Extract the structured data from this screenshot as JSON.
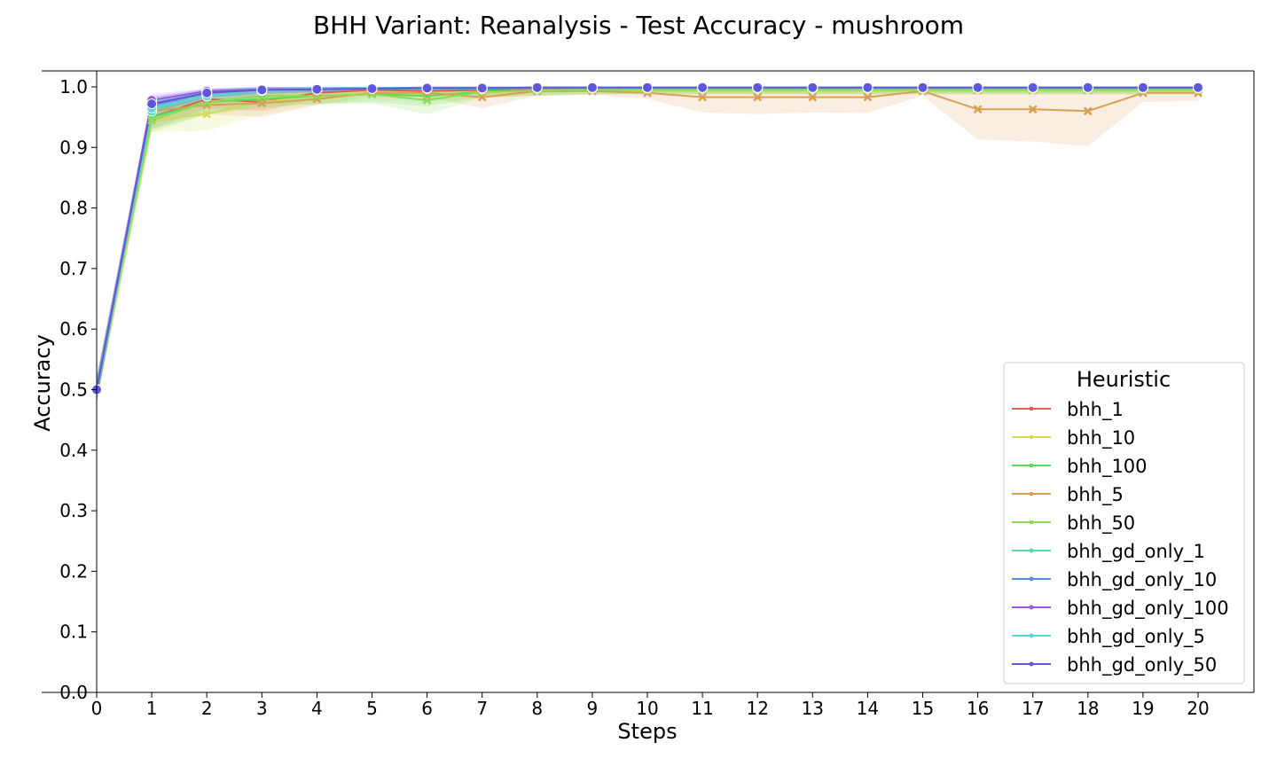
{
  "chart_data": {
    "type": "line",
    "title": "BHH Variant: Reanalysis - Test Accuracy - mushroom",
    "xlabel": "Steps",
    "ylabel": "Accuracy",
    "xlim": [
      0,
      21
    ],
    "ylim": [
      0.0,
      1.0
    ],
    "x": [
      0,
      1,
      2,
      3,
      4,
      5,
      6,
      7,
      8,
      9,
      10,
      11,
      12,
      13,
      14,
      15,
      16,
      17,
      18,
      19,
      20
    ],
    "xticks": [
      "0",
      "1",
      "2",
      "3",
      "4",
      "5",
      "6",
      "7",
      "8",
      "9",
      "10",
      "11",
      "12",
      "13",
      "14",
      "15",
      "16",
      "17",
      "18",
      "19",
      "20"
    ],
    "yticks": [
      "0.0",
      "0.1",
      "0.2",
      "0.3",
      "0.4",
      "0.5",
      "0.6",
      "0.7",
      "0.8",
      "0.9",
      "1.0"
    ],
    "grid": false,
    "legend": {
      "title": "Heuristic",
      "position": "lower-right"
    },
    "series": [
      {
        "name": "bhh_1",
        "color": "#db5f57",
        "marker": "x",
        "values": [
          0.5,
          0.95,
          0.98,
          0.975,
          0.99,
          0.995,
          0.993,
          0.995,
          0.996,
          0.997,
          0.997,
          0.997,
          0.997,
          0.997,
          0.997,
          0.997,
          0.997,
          0.997,
          0.997,
          0.997,
          0.997
        ],
        "lower": [
          0.49,
          0.93,
          0.965,
          0.96,
          0.98,
          0.988,
          0.985,
          0.988,
          0.99,
          0.992,
          0.992,
          0.992,
          0.992,
          0.992,
          0.992,
          0.992,
          0.992,
          0.992,
          0.992,
          0.992,
          0.992
        ],
        "upper": [
          0.51,
          0.968,
          0.992,
          0.988,
          0.997,
          0.999,
          0.999,
          0.999,
          1.0,
          1.0,
          1.0,
          1.0,
          1.0,
          1.0,
          1.0,
          1.0,
          1.0,
          1.0,
          1.0,
          1.0,
          1.0
        ]
      },
      {
        "name": "bhh_10",
        "color": "#d3db57",
        "marker": "x",
        "values": [
          0.5,
          0.945,
          0.955,
          0.975,
          0.985,
          0.99,
          0.988,
          0.99,
          0.993,
          0.994,
          0.994,
          0.994,
          0.994,
          0.994,
          0.994,
          0.994,
          0.994,
          0.994,
          0.994,
          0.994,
          0.994
        ],
        "lower": [
          0.48,
          0.925,
          0.928,
          0.955,
          0.97,
          0.98,
          0.975,
          0.982,
          0.985,
          0.988,
          0.988,
          0.988,
          0.988,
          0.988,
          0.988,
          0.988,
          0.988,
          0.988,
          0.988,
          0.988,
          0.988
        ],
        "upper": [
          0.52,
          0.965,
          0.98,
          0.99,
          0.996,
          0.998,
          0.997,
          0.998,
          0.999,
          0.999,
          0.999,
          0.999,
          0.999,
          0.999,
          0.999,
          0.999,
          0.999,
          0.999,
          0.999,
          0.999,
          0.999
        ]
      },
      {
        "name": "bhh_100",
        "color": "#57db5f",
        "marker": "x",
        "values": [
          0.5,
          0.95,
          0.975,
          0.98,
          0.985,
          0.988,
          0.985,
          0.992,
          0.994,
          0.995,
          0.995,
          0.995,
          0.995,
          0.995,
          0.995,
          0.995,
          0.995,
          0.995,
          0.995,
          0.995,
          0.995
        ],
        "lower": [
          0.48,
          0.93,
          0.955,
          0.965,
          0.972,
          0.975,
          0.968,
          0.982,
          0.986,
          0.988,
          0.988,
          0.988,
          0.988,
          0.988,
          0.988,
          0.988,
          0.988,
          0.988,
          0.988,
          0.988,
          0.988
        ],
        "upper": [
          0.52,
          0.968,
          0.99,
          0.992,
          0.995,
          0.997,
          0.996,
          0.998,
          0.999,
          0.999,
          0.999,
          0.999,
          0.999,
          0.999,
          0.999,
          0.999,
          0.999,
          0.999,
          0.999,
          0.999,
          0.999
        ]
      },
      {
        "name": "bhh_5",
        "color": "#db9e57",
        "marker": "x",
        "values": [
          0.5,
          0.96,
          0.97,
          0.973,
          0.98,
          0.99,
          0.99,
          0.983,
          0.993,
          0.993,
          0.99,
          0.983,
          0.983,
          0.983,
          0.983,
          0.993,
          0.963,
          0.963,
          0.96,
          0.99,
          0.99
        ],
        "lower": [
          0.48,
          0.94,
          0.955,
          0.95,
          0.97,
          0.985,
          0.983,
          0.965,
          0.985,
          0.987,
          0.98,
          0.958,
          0.955,
          0.958,
          0.957,
          0.985,
          0.913,
          0.91,
          0.902,
          0.975,
          0.977
        ],
        "upper": [
          0.52,
          0.975,
          0.985,
          0.99,
          0.993,
          0.997,
          0.997,
          0.997,
          0.999,
          0.999,
          0.998,
          0.997,
          0.997,
          0.997,
          0.997,
          0.999,
          0.997,
          0.997,
          0.997,
          0.999,
          0.999
        ]
      },
      {
        "name": "bhh_50",
        "color": "#8edb57",
        "marker": "x",
        "values": [
          0.5,
          0.945,
          0.975,
          0.985,
          0.985,
          0.988,
          0.978,
          0.992,
          0.994,
          0.995,
          0.995,
          0.995,
          0.995,
          0.995,
          0.995,
          0.995,
          0.995,
          0.995,
          0.995,
          0.995,
          0.995
        ],
        "lower": [
          0.48,
          0.925,
          0.955,
          0.97,
          0.972,
          0.972,
          0.955,
          0.982,
          0.986,
          0.988,
          0.988,
          0.988,
          0.988,
          0.988,
          0.988,
          0.988,
          0.988,
          0.988,
          0.988,
          0.988,
          0.988
        ],
        "upper": [
          0.52,
          0.965,
          0.99,
          0.995,
          0.995,
          0.997,
          0.994,
          0.998,
          0.999,
          0.999,
          0.999,
          0.999,
          0.999,
          0.999,
          0.999,
          0.999,
          0.999,
          0.999,
          0.999,
          0.999,
          0.999
        ]
      },
      {
        "name": "bhh_gd_only_1",
        "color": "#57dba1",
        "marker": "o",
        "values": [
          0.5,
          0.96,
          0.99,
          0.994,
          0.996,
          0.997,
          0.997,
          0.997,
          0.998,
          0.998,
          0.998,
          0.998,
          0.998,
          0.998,
          0.998,
          0.998,
          0.998,
          0.998,
          0.998,
          0.998,
          0.998
        ],
        "lower": [
          0.48,
          0.945,
          0.98,
          0.988,
          0.99,
          0.992,
          0.992,
          0.992,
          0.994,
          0.994,
          0.994,
          0.994,
          0.994,
          0.994,
          0.994,
          0.994,
          0.994,
          0.994,
          0.994,
          0.994,
          0.994
        ],
        "upper": [
          0.52,
          0.975,
          0.997,
          0.999,
          1.0,
          1.0,
          1.0,
          1.0,
          1.0,
          1.0,
          1.0,
          1.0,
          1.0,
          1.0,
          1.0,
          1.0,
          1.0,
          1.0,
          1.0,
          1.0,
          1.0
        ]
      },
      {
        "name": "bhh_gd_only_10",
        "color": "#578edb",
        "marker": "o",
        "values": [
          0.5,
          0.97,
          0.99,
          0.996,
          0.996,
          0.998,
          0.999,
          0.999,
          0.999,
          0.999,
          0.999,
          0.999,
          0.999,
          0.999,
          0.999,
          0.999,
          0.999,
          0.999,
          0.999,
          0.999,
          0.999
        ],
        "lower": [
          0.48,
          0.955,
          0.982,
          0.99,
          0.992,
          0.995,
          0.996,
          0.996,
          0.996,
          0.996,
          0.996,
          0.996,
          0.996,
          0.996,
          0.996,
          0.996,
          0.996,
          0.996,
          0.996,
          0.996,
          0.996
        ],
        "upper": [
          0.52,
          0.982,
          0.996,
          1.0,
          1.0,
          1.0,
          1.0,
          1.0,
          1.0,
          1.0,
          1.0,
          1.0,
          1.0,
          1.0,
          1.0,
          1.0,
          1.0,
          1.0,
          1.0,
          1.0,
          1.0
        ]
      },
      {
        "name": "bhh_gd_only_100",
        "color": "#9e57db",
        "marker": "o",
        "values": [
          0.5,
          0.978,
          0.993,
          0.996,
          0.997,
          0.998,
          0.998,
          0.998,
          0.999,
          0.999,
          0.999,
          0.999,
          0.999,
          0.999,
          0.999,
          0.999,
          0.999,
          0.999,
          0.999,
          0.999,
          0.999
        ],
        "lower": [
          0.48,
          0.965,
          0.986,
          0.99,
          0.993,
          0.995,
          0.995,
          0.995,
          0.996,
          0.996,
          0.996,
          0.996,
          0.996,
          0.996,
          0.996,
          0.996,
          0.996,
          0.996,
          0.996,
          0.996,
          0.996
        ],
        "upper": [
          0.52,
          0.988,
          0.998,
          1.0,
          1.0,
          1.0,
          1.0,
          1.0,
          1.0,
          1.0,
          1.0,
          1.0,
          1.0,
          1.0,
          1.0,
          1.0,
          1.0,
          1.0,
          1.0,
          1.0,
          1.0
        ]
      },
      {
        "name": "bhh_gd_only_5",
        "color": "#57d3db",
        "marker": "o",
        "values": [
          0.5,
          0.965,
          0.985,
          0.995,
          0.997,
          0.998,
          0.998,
          0.998,
          0.999,
          0.999,
          0.999,
          0.999,
          0.999,
          0.999,
          0.999,
          0.999,
          0.999,
          0.999,
          0.999,
          0.999,
          0.999
        ],
        "lower": [
          0.48,
          0.95,
          0.975,
          0.988,
          0.992,
          0.994,
          0.994,
          0.994,
          0.995,
          0.995,
          0.995,
          0.995,
          0.995,
          0.995,
          0.995,
          0.995,
          0.995,
          0.995,
          0.995,
          0.995,
          0.995
        ],
        "upper": [
          0.52,
          0.978,
          0.994,
          1.0,
          1.0,
          1.0,
          1.0,
          1.0,
          1.0,
          1.0,
          1.0,
          1.0,
          1.0,
          1.0,
          1.0,
          1.0,
          1.0,
          1.0,
          1.0,
          1.0,
          1.0
        ]
      },
      {
        "name": "bhh_gd_only_50",
        "color": "#5f57db",
        "marker": "o",
        "values": [
          0.5,
          0.972,
          0.99,
          0.995,
          0.996,
          0.997,
          0.998,
          0.998,
          0.999,
          0.999,
          0.999,
          0.999,
          0.999,
          0.999,
          0.999,
          0.999,
          0.999,
          0.999,
          0.999,
          0.999,
          0.999
        ],
        "lower": [
          0.48,
          0.958,
          0.982,
          0.989,
          0.991,
          0.993,
          0.994,
          0.994,
          0.995,
          0.995,
          0.995,
          0.995,
          0.995,
          0.995,
          0.995,
          0.995,
          0.995,
          0.995,
          0.995,
          0.995,
          0.995
        ],
        "upper": [
          0.52,
          0.984,
          0.996,
          1.0,
          1.0,
          1.0,
          1.0,
          1.0,
          1.0,
          1.0,
          1.0,
          1.0,
          1.0,
          1.0,
          1.0,
          1.0,
          1.0,
          1.0,
          1.0,
          1.0,
          1.0
        ]
      }
    ]
  }
}
